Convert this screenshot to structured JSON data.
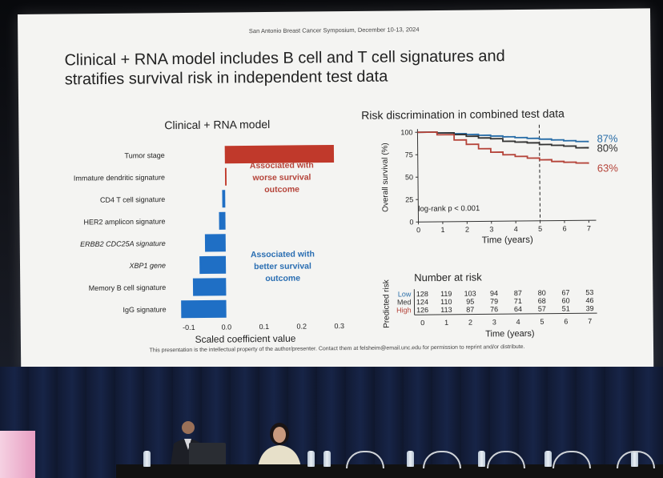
{
  "slide": {
    "header": "San Antonio Breast Cancer Symposium, December 10-13, 2024",
    "title_line1": "Clinical + RNA model includes B cell and T cell signatures and",
    "title_line2": "stratifies survival risk in independent test data",
    "footer": "This presentation is the intellectual property of the author/presenter. Contact them at felsheim@email.unc.edu for permission to reprint and/or distribute."
  },
  "left_chart": {
    "title": "Clinical + RNA model",
    "xlabel": "Scaled coefficient value",
    "annotation_worse": [
      "Associated with",
      "worse survival",
      "outcome"
    ],
    "annotation_better": [
      "Associated with",
      "better survival",
      "outcome"
    ],
    "colors": {
      "positive": "#c0392b",
      "negative": "#1f6fc5"
    }
  },
  "right_chart": {
    "title": "Risk discrimination in combined test data",
    "ylabel": "Overall survival (%)",
    "xlabel": "Time (years)",
    "annotation": "log-rank p < 0.001",
    "end_labels": [
      "87%",
      "80%",
      "63%"
    ],
    "colors": {
      "Low": "#2a6ea8",
      "Med": "#333333",
      "High": "#b5443a"
    }
  },
  "risk_table": {
    "title": "Number at risk",
    "ylabel": "Predicted risk",
    "xlabel": "Time (years)",
    "x_ticks": [
      "0",
      "1",
      "2",
      "3",
      "4",
      "5",
      "6",
      "7"
    ],
    "rows": [
      {
        "label": "Low",
        "values": [
          "128",
          "119",
          "103",
          "94",
          "87",
          "80",
          "67",
          "53"
        ]
      },
      {
        "label": "Med",
        "values": [
          "124",
          "110",
          "95",
          "79",
          "71",
          "68",
          "60",
          "46"
        ]
      },
      {
        "label": "High",
        "values": [
          "126",
          "113",
          "87",
          "76",
          "64",
          "57",
          "51",
          "39"
        ]
      }
    ]
  },
  "chart_data": [
    {
      "type": "bar",
      "orientation": "horizontal",
      "title": "Clinical + RNA model",
      "xlabel": "Scaled coefficient value",
      "categories": [
        "Tumor stage",
        "Immature dendritic signature",
        "CD4 T cell signature",
        "HER2 amplicon signature",
        "ERBB2 CDC25A signature",
        "XBP1 gene",
        "Memory B cell signature",
        "IgG signature"
      ],
      "values": [
        0.29,
        0.004,
        -0.008,
        -0.017,
        -0.055,
        -0.07,
        -0.088,
        -0.12
      ],
      "x_ticks": [
        "-0.1",
        "0.0",
        "0.1",
        "0.2",
        "0.3"
      ],
      "xlim": [
        -0.13,
        0.3
      ]
    },
    {
      "type": "line",
      "title": "Risk discrimination in combined test data",
      "xlabel": "Time (years)",
      "ylabel": "Overall survival (%)",
      "x_ticks": [
        "0",
        "1",
        "2",
        "3",
        "4",
        "5",
        "6",
        "7"
      ],
      "y_ticks": [
        "0",
        "25",
        "50",
        "75",
        "100"
      ],
      "xlim": [
        0,
        7.3
      ],
      "ylim": [
        0,
        100
      ],
      "reference_line_x": 5,
      "series": [
        {
          "name": "Low",
          "x": [
            0,
            0.8,
            1.5,
            2,
            2.5,
            3,
            3.5,
            4,
            4.5,
            5,
            5.5,
            6,
            6.5,
            7
          ],
          "y": [
            100,
            99,
            98,
            97,
            96,
            95,
            94,
            93,
            92,
            91,
            90,
            89,
            88,
            87
          ]
        },
        {
          "name": "Med",
          "x": [
            0,
            0.8,
            1.5,
            2,
            2.5,
            3,
            3.5,
            4,
            4.5,
            5,
            5.5,
            6,
            6.5,
            7
          ],
          "y": [
            100,
            99,
            97,
            95,
            93,
            92,
            89,
            88,
            87,
            85,
            84,
            83,
            81,
            80
          ]
        },
        {
          "name": "High",
          "x": [
            0,
            0.8,
            1.5,
            2,
            2.5,
            3,
            3.5,
            4,
            4.5,
            5,
            5.5,
            6,
            6.5,
            7
          ],
          "y": [
            100,
            97,
            91,
            86,
            81,
            77,
            74,
            72,
            70,
            68,
            66,
            65,
            64,
            63
          ]
        }
      ]
    }
  ]
}
